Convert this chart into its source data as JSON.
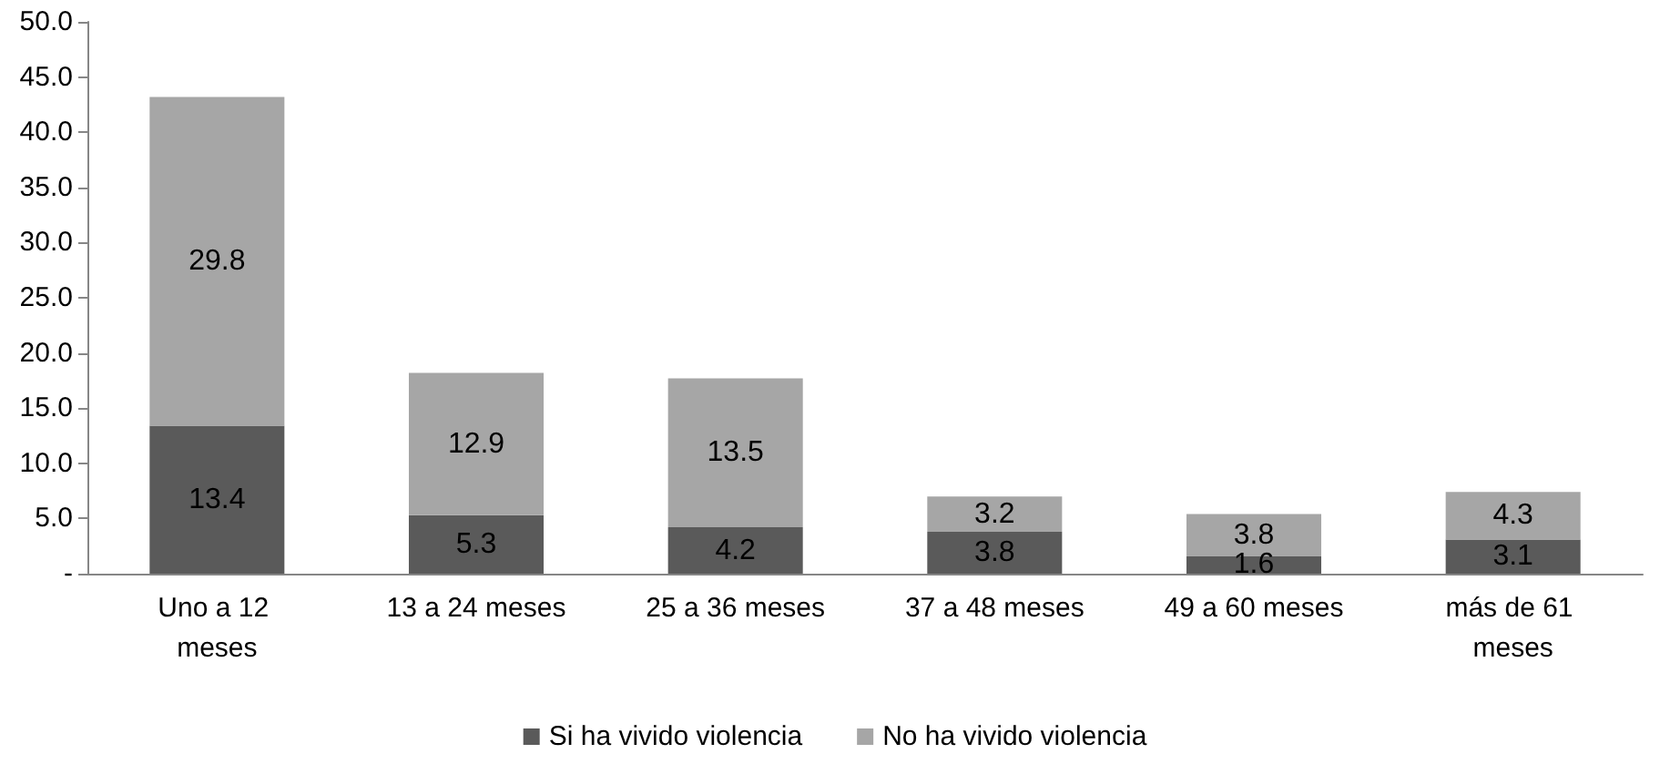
{
  "chart_data": {
    "type": "bar",
    "stacked": true,
    "categories": [
      "Uno a 12 meses",
      "13 a 24 meses",
      "25 a 36 meses",
      "37 a 48 meses",
      "49 a 60 meses",
      "más de 61 meses"
    ],
    "series": [
      {
        "name": "Si ha vivido violencia",
        "color": "#5a5a5a",
        "values": [
          13.4,
          5.3,
          4.2,
          3.8,
          1.6,
          3.1
        ]
      },
      {
        "name": "No ha vivido violencia",
        "color": "#a6a6a6",
        "values": [
          29.8,
          12.9,
          13.5,
          3.2,
          3.8,
          4.3
        ]
      }
    ],
    "ylim": [
      0,
      50
    ],
    "yticks": [
      {
        "value": 0,
        "label": "-"
      },
      {
        "value": 5,
        "label": "5.0"
      },
      {
        "value": 10,
        "label": "10.0"
      },
      {
        "value": 15,
        "label": "15.0"
      },
      {
        "value": 20,
        "label": "20.0"
      },
      {
        "value": 25,
        "label": "25.0"
      },
      {
        "value": 30,
        "label": "30.0"
      },
      {
        "value": 35,
        "label": "35.0"
      },
      {
        "value": 40,
        "label": "40.0"
      },
      {
        "value": 45,
        "label": "45.0"
      },
      {
        "value": 50,
        "label": "50.0"
      }
    ],
    "grid": false,
    "legend": "bottom",
    "data_labels": true
  }
}
